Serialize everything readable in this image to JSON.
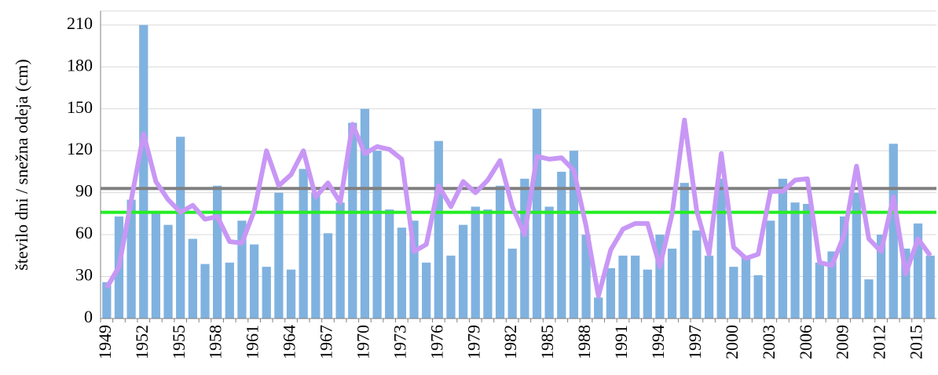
{
  "chart_data": {
    "type": "bar",
    "y_label": "število dni / snežna odeja (cm)",
    "categories": [
      "1949",
      null,
      null,
      "1952",
      null,
      null,
      "1955",
      null,
      null,
      "1958",
      null,
      null,
      "1961",
      null,
      null,
      "1964",
      null,
      null,
      "1967",
      null,
      null,
      "1970",
      null,
      null,
      "1973",
      null,
      null,
      "1976",
      null,
      null,
      "1979",
      null,
      null,
      "1982",
      null,
      null,
      "1985",
      null,
      null,
      "1988",
      null,
      null,
      "1991",
      null,
      null,
      "1994",
      null,
      null,
      "1997",
      null,
      null,
      "2000",
      null,
      null,
      "2003",
      null,
      null,
      "2006",
      null,
      null,
      "2009",
      null,
      null,
      "2012",
      null,
      null,
      "2015",
      null
    ],
    "series": [
      {
        "type": "bar",
        "color": "#80b2e0",
        "values": [
          26,
          73,
          85,
          210,
          77,
          67,
          130,
          57,
          39,
          95,
          40,
          70,
          53,
          37,
          90,
          35,
          107,
          90,
          61,
          83,
          140,
          150,
          120,
          78,
          65,
          70,
          40,
          127,
          45,
          67,
          80,
          78,
          95,
          50,
          100,
          150,
          80,
          105,
          120,
          60,
          15,
          36,
          45,
          45,
          35,
          60,
          50,
          97,
          63,
          45,
          100,
          37,
          45,
          31,
          70,
          100,
          83,
          82,
          40,
          48,
          73,
          90,
          28,
          60,
          125,
          50,
          68,
          45
        ]
      },
      {
        "type": "line",
        "color": "#c897f5",
        "values": [
          22,
          37,
          85,
          132,
          98,
          85,
          76,
          81,
          71,
          73,
          55,
          54,
          77,
          120,
          95,
          103,
          120,
          87,
          97,
          83,
          139,
          118,
          123,
          121,
          114,
          48,
          53,
          95,
          80,
          98,
          90,
          99,
          113,
          80,
          60,
          116,
          114,
          115,
          106,
          66,
          16,
          49,
          64,
          68,
          68,
          37,
          75,
          142,
          77,
          46,
          118,
          51,
          43,
          46,
          91,
          91,
          99,
          100,
          40,
          38,
          60,
          109,
          57,
          48,
          87,
          32,
          57,
          45
        ]
      }
    ],
    "reference_lines": [
      {
        "value": 93,
        "color": "#808080"
      },
      {
        "value": 76,
        "color": "#22ee22"
      }
    ],
    "ylim": [
      0,
      220
    ],
    "yticks": [
      0,
      30,
      60,
      90,
      120,
      150,
      180,
      210
    ],
    "grid": true
  }
}
